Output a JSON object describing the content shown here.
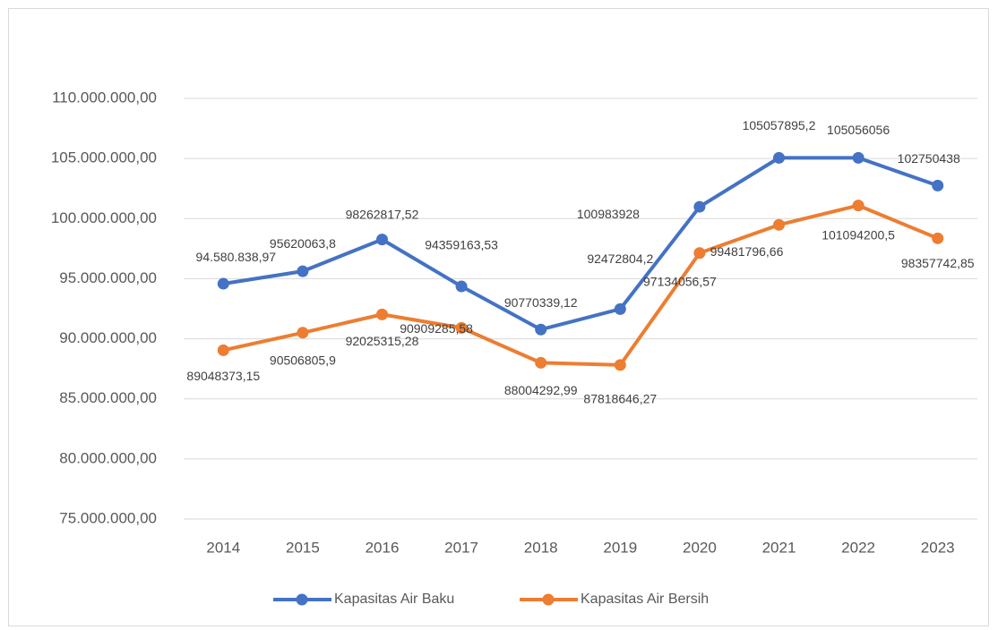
{
  "chart_data": {
    "type": "line",
    "categories": [
      "2014",
      "2015",
      "2016",
      "2017",
      "2018",
      "2019",
      "2020",
      "2021",
      "2022",
      "2023"
    ],
    "series": [
      {
        "name": "Kapasitas Air Baku",
        "color": "#4472c4",
        "values": [
          94580838.97,
          95620063.8,
          98262817.52,
          94359163.53,
          90770339.12,
          92472804.2,
          100983928,
          105057895.2,
          105056056,
          102750438
        ],
        "value_labels": [
          "94.580.838,97",
          "95620063,8",
          "98262817,52",
          "94359163,53",
          "90770339,12",
          "92472804,2",
          "100983928",
          "105057895,2",
          "105056056",
          "102750438"
        ]
      },
      {
        "name": "Kapasitas Air Bersih",
        "color": "#ed7d31",
        "values": [
          89048373.15,
          90506805.9,
          92025315.28,
          90909285.58,
          88004292.99,
          87818646.27,
          97134056.57,
          99481796.66,
          101094200.5,
          98357742.85
        ],
        "value_labels": [
          "89048373,15",
          "90506805,9",
          "92025315,28",
          "90909285,58",
          "88004292,99",
          "87818646,27",
          "97134056,57",
          "99481796,66",
          "101094200,5",
          "98357742,85"
        ]
      }
    ],
    "ylim": [
      75000000,
      110000000
    ],
    "yticks": [
      {
        "value": 75000000,
        "label": "75.000.000,00"
      },
      {
        "value": 80000000,
        "label": "80.000.000,00"
      },
      {
        "value": 85000000,
        "label": "85.000.000,00"
      },
      {
        "value": 90000000,
        "label": "90.000.000,00"
      },
      {
        "value": 95000000,
        "label": "95.000.000,00"
      },
      {
        "value": 100000000,
        "label": "100.000.000,00"
      },
      {
        "value": 105000000,
        "label": "105.000.000,00"
      },
      {
        "value": 110000000,
        "label": "110.000.000,00"
      }
    ],
    "grid": true,
    "legend": "bottom"
  }
}
